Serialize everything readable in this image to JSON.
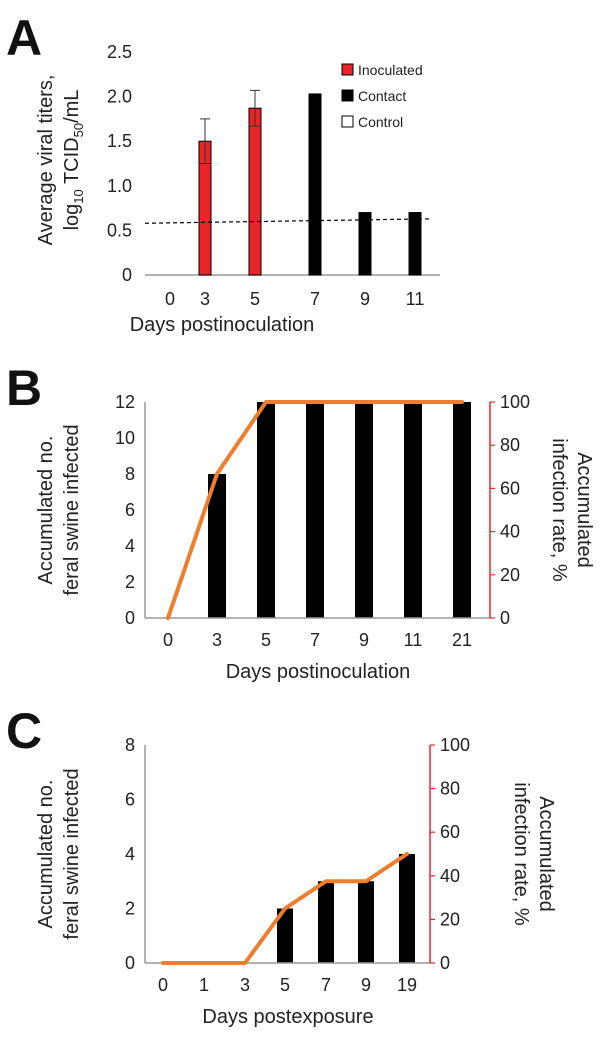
{
  "colors": {
    "inoculated": "#e8262a",
    "contact": "#000000",
    "control": "#ffffff",
    "rate_line": "#ee7d2d",
    "right_axis": "#e8262a"
  },
  "chart_data": [
    {
      "panel": "A",
      "type": "bar",
      "categories": [
        "0",
        "3",
        "5",
        "7",
        "9",
        "11"
      ],
      "ylabel_line1": "Average viral titers,",
      "ylabel_line2_prefix": "log",
      "ylabel_line2_sub1": "10",
      "ylabel_line2_mid": " TCID",
      "ylabel_line2_sub2": "50",
      "ylabel_line2_suffix": "/mL",
      "xlabel": "Days postinoculation",
      "ylim": [
        0,
        2.5
      ],
      "yticks": [
        "0",
        "0.5",
        "1.0",
        "1.5",
        "2.0",
        "2.5"
      ],
      "legend": [
        "Inoculated",
        "Contact",
        "Control"
      ],
      "legend_position": "top-right",
      "series": [
        {
          "name": "Inoculated",
          "values": [
            null,
            1.5,
            1.87,
            null,
            null,
            null
          ],
          "errors": [
            null,
            0.25,
            0.2,
            null,
            null,
            null
          ]
        },
        {
          "name": "Contact",
          "values": [
            null,
            null,
            null,
            2.03,
            0.7,
            0.7
          ]
        },
        {
          "name": "Control",
          "values": [
            null,
            null,
            null,
            null,
            null,
            null
          ]
        }
      ],
      "detection_limit_line": {
        "style": "dashed",
        "y_start": 0.58,
        "y_end": 0.63
      }
    },
    {
      "panel": "B",
      "type": "bar",
      "categories": [
        "0",
        "3",
        "5",
        "7",
        "9",
        "11",
        "21"
      ],
      "ylabel_lines": [
        "Accumulated no.",
        "feral swine infected"
      ],
      "y2label_lines": [
        "Accumulated",
        "infection rate, %"
      ],
      "xlabel": "Days postinoculation",
      "ylim": [
        0,
        12
      ],
      "yticks": [
        "0",
        "2",
        "4",
        "6",
        "8",
        "10",
        "12"
      ],
      "y2lim": [
        0,
        100
      ],
      "y2ticks": [
        "0",
        "20",
        "40",
        "60",
        "80",
        "100"
      ],
      "bars": [
        0,
        8,
        12,
        12,
        12,
        12,
        12
      ],
      "rate_line": [
        0,
        66.7,
        100,
        100,
        100,
        100,
        100
      ]
    },
    {
      "panel": "C",
      "type": "bar",
      "categories": [
        "0",
        "1",
        "3",
        "5",
        "7",
        "9",
        "19"
      ],
      "ylabel_lines": [
        "Accumulated no.",
        "feral swine infected"
      ],
      "y2label_lines": [
        "Accumulated",
        "infection rate, %"
      ],
      "xlabel": "Days postexposure",
      "ylim": [
        0,
        8
      ],
      "yticks": [
        "0",
        "2",
        "4",
        "6",
        "8"
      ],
      "y2lim": [
        0,
        100
      ],
      "y2ticks": [
        "0",
        "20",
        "40",
        "60",
        "80",
        "100"
      ],
      "bars": [
        0,
        0,
        0,
        2,
        3,
        3,
        4
      ],
      "rate_line": [
        0,
        0,
        0,
        25,
        37.5,
        37.5,
        50
      ]
    }
  ]
}
